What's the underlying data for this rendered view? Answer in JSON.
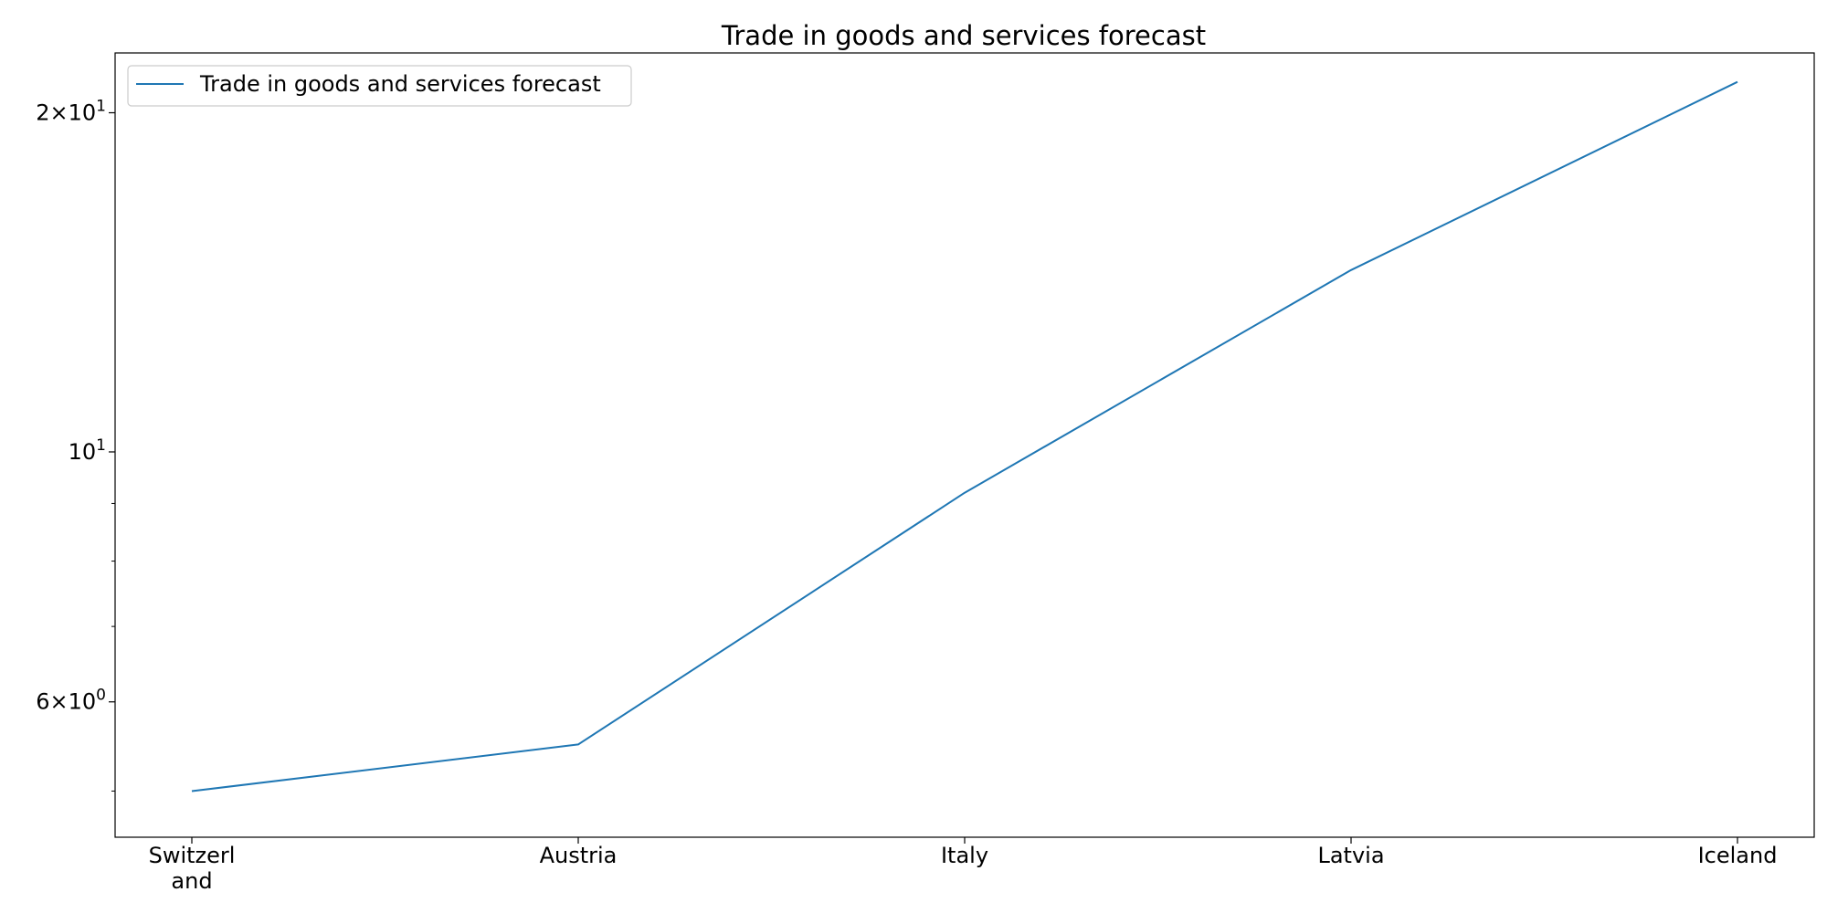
{
  "chart_data": {
    "type": "line",
    "title": "Trade in goods and services forecast",
    "xlabel": "",
    "ylabel": "",
    "categories": [
      "Switzerland",
      "Austria",
      "Italy",
      "Latvia",
      "Iceland"
    ],
    "category_labels": [
      [
        "Switzerl",
        "and"
      ],
      [
        "Austria"
      ],
      [
        "Italy"
      ],
      [
        "Latvia"
      ],
      [
        "Iceland"
      ]
    ],
    "series": [
      {
        "name": "Trade in goods and services forecast",
        "values": [
          5.0,
          5.5,
          9.2,
          14.5,
          21.3
        ],
        "color": "#1f77b4"
      }
    ],
    "y_scale": "log",
    "ylim": [
      4.55,
      22.6
    ],
    "y_major_ticks": [
      {
        "value": 6,
        "mantissa": "6",
        "exp": "0"
      },
      {
        "value": 10,
        "mantissa": "",
        "exp": "1"
      },
      {
        "value": 20,
        "mantissa": "2",
        "exp": "1"
      }
    ],
    "y_minor_ticks": [
      5,
      7,
      8,
      9
    ],
    "grid": false,
    "legend_position": "upper-left"
  }
}
